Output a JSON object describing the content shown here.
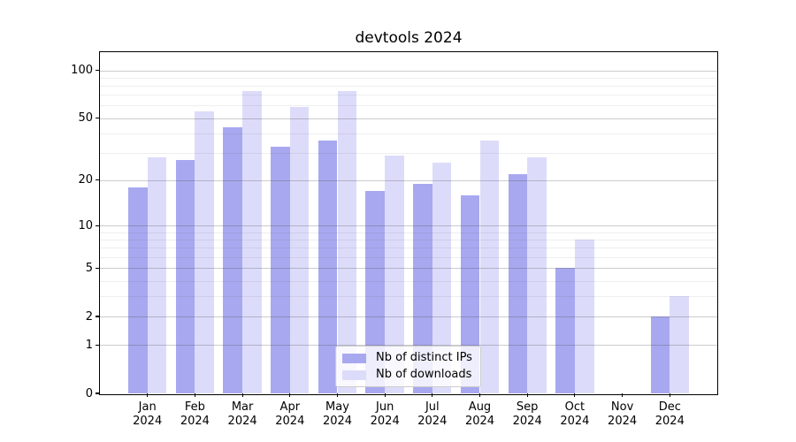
{
  "chart_data": {
    "type": "bar",
    "title": "devtools 2024",
    "categories": [
      "Jan",
      "Feb",
      "Mar",
      "Apr",
      "May",
      "Jun",
      "Jul",
      "Aug",
      "Sep",
      "Oct",
      "Nov",
      "Dec"
    ],
    "year_label": "2024",
    "series": [
      {
        "name": "Nb of distinct IPs",
        "color": "#a8a8f0",
        "values": [
          18,
          27,
          44,
          33,
          36,
          17,
          19,
          16,
          22,
          5,
          0,
          2
        ]
      },
      {
        "name": "Nb of downloads",
        "color": "#dcdcfa",
        "values": [
          28,
          55,
          74,
          59,
          74,
          29,
          26,
          36,
          28,
          8,
          0,
          3
        ]
      }
    ],
    "yscale": "log1p",
    "yticks": [
      0,
      1,
      2,
      5,
      10,
      20,
      50,
      100
    ],
    "minor_gridlines": [
      3,
      4,
      6,
      7,
      8,
      9,
      30,
      40,
      60,
      70,
      80,
      90
    ],
    "ylim": [
      0,
      130
    ],
    "grid": true,
    "legend_position": "bottom-center"
  }
}
